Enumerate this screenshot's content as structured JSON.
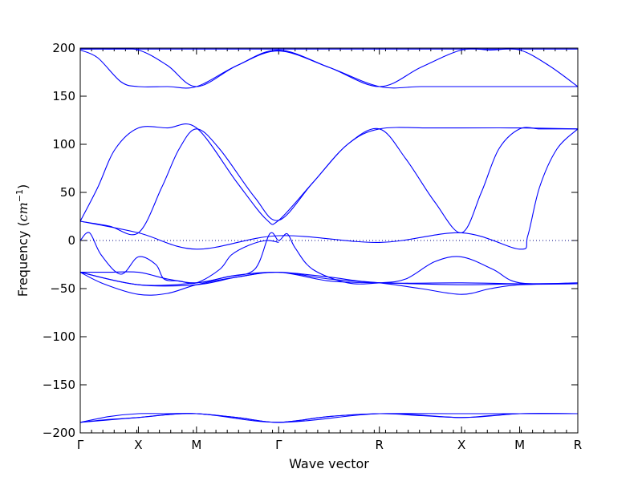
{
  "chart_data": {
    "type": "line",
    "xlabel": "Wave vector",
    "ylabel_text": "Frequency (",
    "ylabel_unit": "cm",
    "ylabel_exp": "−1",
    "ylabel_close": ")",
    "ylim": [
      -200,
      200
    ],
    "yticks": [
      -200,
      -150,
      -100,
      -50,
      0,
      50,
      100,
      150,
      200
    ],
    "ytick_labels": [
      "−200",
      "−150",
      "−100",
      "−50",
      "0",
      "50",
      "100",
      "150",
      "200"
    ],
    "k_points": [
      {
        "label": "Γ",
        "x": 0
      },
      {
        "label": "X",
        "x": 0.5
      },
      {
        "label": "M",
        "x": 1.0
      },
      {
        "label": "Γ",
        "x": 1.707
      },
      {
        "label": "R",
        "x": 2.573
      },
      {
        "label": "X",
        "x": 3.28
      },
      {
        "label": "M",
        "x": 3.78
      },
      {
        "label": "R",
        "x": 4.28
      }
    ],
    "zero_line": true,
    "color": "#0000ff",
    "series": [
      {
        "x": [
          0,
          0.25,
          0.5,
          0.75,
          1.0,
          1.35,
          1.707,
          2.14,
          2.573,
          2.93,
          3.28,
          3.53,
          3.78,
          4.03,
          4.28
        ],
        "y": [
          199,
          199,
          198,
          182,
          160,
          182,
          198,
          180,
          160,
          180,
          198,
          198,
          198,
          182,
          160
        ]
      },
      {
        "x": [
          0,
          0.15,
          0.35,
          0.5,
          0.75,
          1.0,
          1.35,
          1.707,
          2.14,
          2.573,
          2.93,
          3.28,
          3.53,
          3.78,
          4.03,
          4.28
        ],
        "y": [
          198,
          190,
          165,
          160,
          160,
          160,
          182,
          197,
          180,
          160,
          160,
          160,
          160,
          160,
          160,
          160
        ]
      },
      {
        "x": [
          0,
          0.5,
          1.0,
          1.707,
          2.573,
          3.28,
          3.78,
          4.28
        ],
        "y": [
          199,
          199,
          199,
          199,
          199,
          199,
          199,
          199
        ]
      },
      {
        "x": [
          0,
          0.15,
          0.3,
          0.5,
          0.75,
          1.0,
          1.35,
          1.6,
          1.707,
          2.0,
          2.3,
          2.573,
          3.0,
          3.28,
          3.78,
          4.28
        ],
        "y": [
          20,
          55,
          95,
          117,
          117,
          117,
          60,
          22,
          21,
          60,
          100,
          116,
          117,
          117,
          117,
          116
        ]
      },
      {
        "x": [
          0,
          0.25,
          0.5,
          0.7,
          0.85,
          1.0,
          1.2,
          1.5,
          1.707,
          2.0,
          2.3,
          2.573,
          2.8,
          3.05,
          3.28,
          3.45,
          3.6,
          3.78,
          3.95,
          4.1,
          4.28
        ],
        "y": [
          20,
          15,
          8,
          55,
          95,
          116,
          95,
          45,
          21,
          60,
          100,
          116,
          85,
          40,
          8,
          50,
          95,
          116,
          116,
          116,
          116
        ]
      },
      {
        "x": [
          0,
          0.5,
          1.0,
          1.707,
          2.573,
          3.28,
          3.78,
          3.85,
          3.95,
          4.1,
          4.28
        ],
        "y": [
          20,
          8,
          -9,
          5,
          -2,
          8,
          -9,
          5,
          55,
          95,
          116
        ]
      },
      {
        "x": [
          0,
          0.08,
          0.18,
          0.35,
          0.5,
          0.65,
          0.72,
          0.85,
          1.0,
          1.2,
          1.3,
          1.45,
          1.6,
          1.707
        ],
        "y": [
          0,
          8,
          -15,
          -35,
          -17,
          -25,
          -40,
          -42,
          -44,
          -30,
          -15,
          -5,
          0,
          -2
        ]
      },
      {
        "x": [
          0,
          0.1,
          0.25,
          0.5,
          0.75,
          1.0,
          1.25,
          1.5,
          1.63,
          1.707,
          1.78,
          1.85,
          2.0,
          2.3,
          2.573,
          2.8,
          3.05,
          3.28,
          3.55,
          3.78,
          4.28
        ],
        "y": [
          -33,
          -33,
          -33,
          -33,
          -40,
          -44,
          -38,
          -30,
          7,
          0,
          7,
          -8,
          -30,
          -44,
          -44,
          -40,
          -22,
          -17,
          -30,
          -44,
          -44
        ]
      },
      {
        "x": [
          0,
          0.2,
          0.5,
          0.75,
          1.0,
          1.35,
          1.707,
          2.14,
          2.573,
          2.93,
          3.28,
          3.53,
          3.78,
          4.28
        ],
        "y": [
          -33,
          -45,
          -56,
          -55,
          -46,
          -38,
          -33,
          -40,
          -44,
          -50,
          -56,
          -50,
          -46,
          -45
        ]
      },
      {
        "x": [
          0,
          0.5,
          1.0,
          1.35,
          1.707,
          2.14,
          2.573,
          3.28,
          3.78,
          4.28
        ],
        "y": [
          -33,
          -46,
          -44,
          -36,
          -33,
          -38,
          -44,
          -44,
          -45,
          -45
        ]
      },
      {
        "x": [
          0,
          0.5,
          1.0,
          1.35,
          1.707,
          2.14,
          2.573,
          3.28,
          3.78,
          4.28
        ],
        "y": [
          -33,
          -46,
          -46,
          -38,
          -33,
          -42,
          -44,
          -46,
          -45,
          -45
        ]
      },
      {
        "x": [
          0,
          0.25,
          0.5,
          0.75,
          1.0,
          1.35,
          1.707,
          2.14,
          2.573,
          3.28,
          3.78,
          4.28
        ],
        "y": [
          -189,
          -186,
          -184,
          -181,
          -180,
          -184,
          -189,
          -183,
          -180,
          -180,
          -180,
          -180
        ]
      },
      {
        "x": [
          0,
          0.25,
          0.5,
          0.75,
          1.0,
          1.35,
          1.707,
          2.14,
          2.573,
          2.93,
          3.28,
          3.53,
          3.78,
          4.28
        ],
        "y": [
          -189,
          -183,
          -180,
          -180,
          -180,
          -184,
          -189,
          -183,
          -180,
          -182,
          -184,
          -182,
          -180,
          -180
        ]
      },
      {
        "x": [
          0,
          0.5,
          1.0,
          1.707,
          2.573,
          3.28,
          3.78,
          4.28
        ],
        "y": [
          -189,
          -184,
          -180,
          -189,
          -180,
          -184,
          -180,
          -180
        ]
      }
    ]
  }
}
